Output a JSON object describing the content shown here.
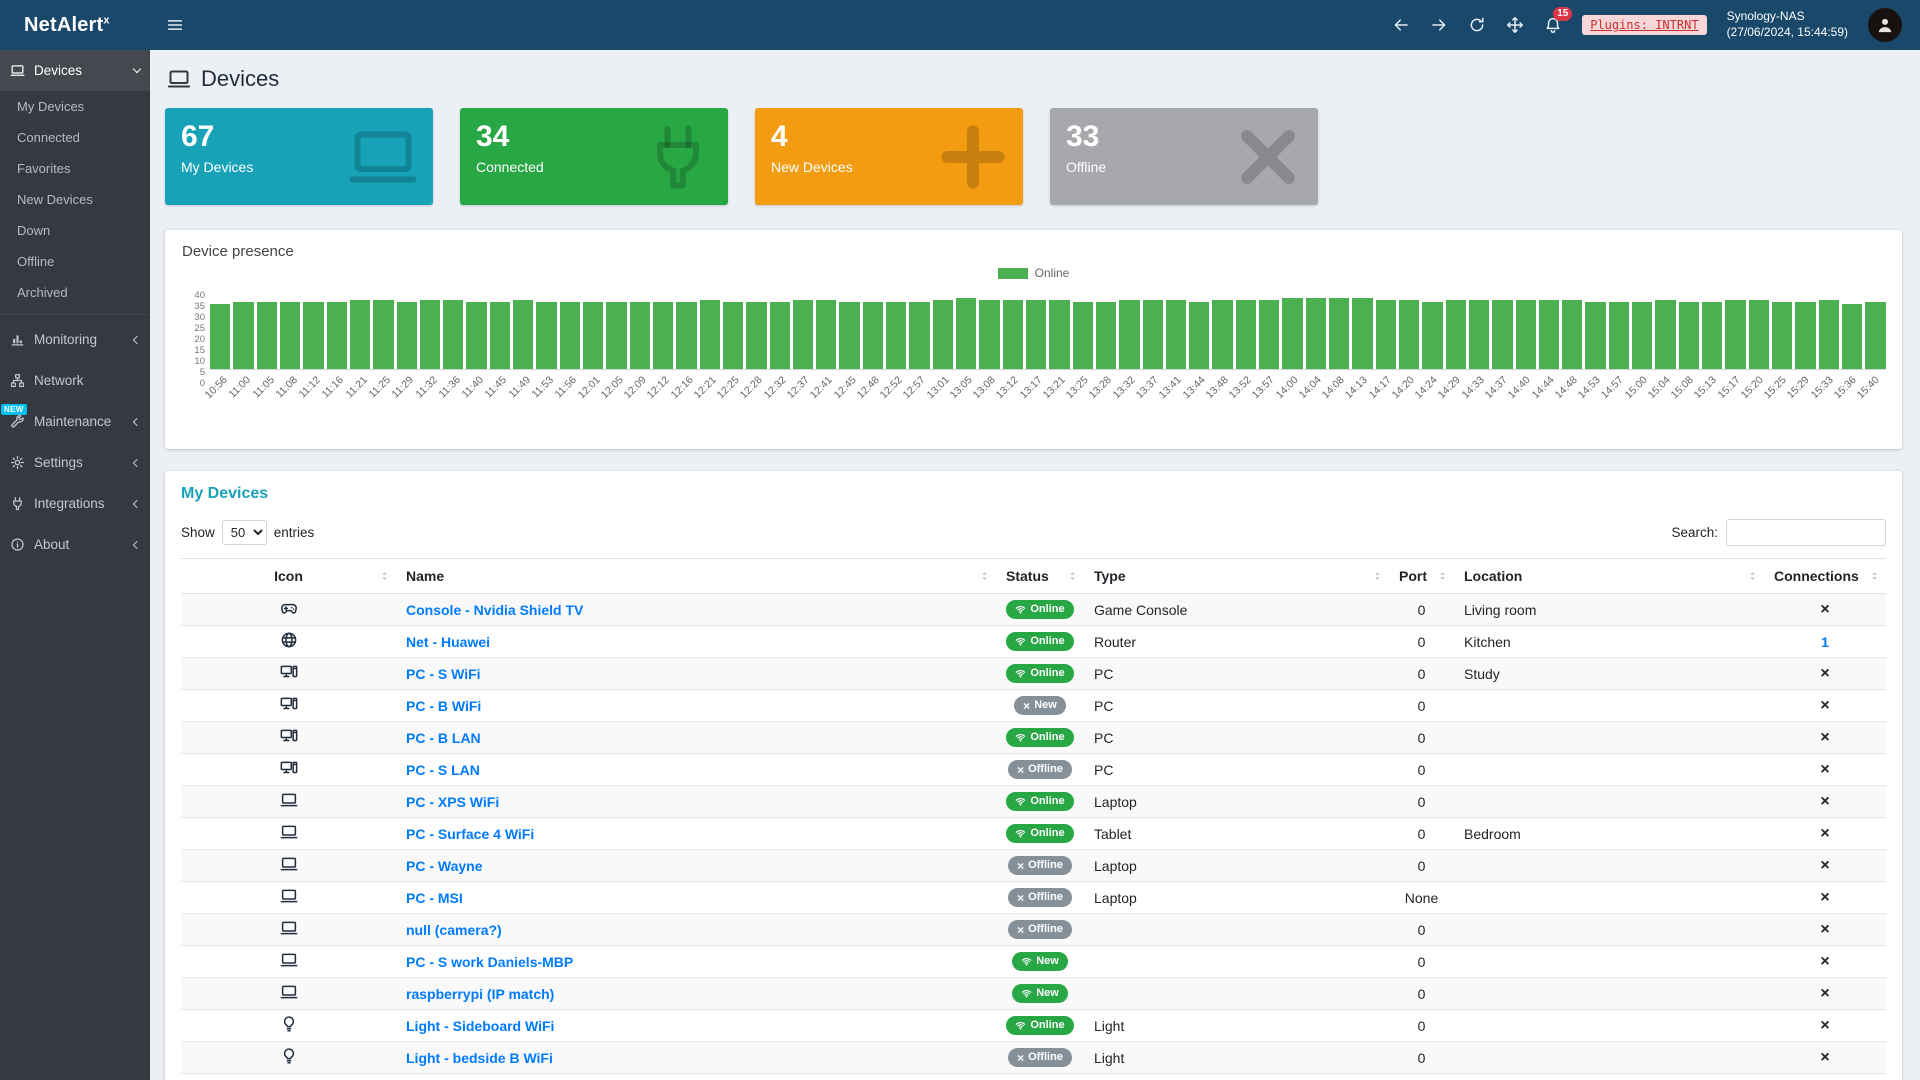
{
  "brand": {
    "name": "NetAlert",
    "sup": "x"
  },
  "topbar": {
    "notification_count": "15",
    "plugins_badge": "Plugins: INTRNT",
    "host": "Synology-NAS",
    "timestamp": "(27/06/2024, 15:44:59)"
  },
  "sidebar": {
    "items": [
      {
        "label": "Devices",
        "icon": "laptop-icon",
        "active": true,
        "expandable": true,
        "expanded": true,
        "children": [
          "My Devices",
          "Connected",
          "Favorites",
          "New Devices",
          "Down",
          "Offline",
          "Archived"
        ]
      },
      {
        "label": "Monitoring",
        "icon": "chart-icon",
        "expandable": true,
        "expanded": false
      },
      {
        "label": "Network",
        "icon": "network-icon",
        "expandable": false
      },
      {
        "label": "Maintenance",
        "icon": "wrench-icon",
        "expandable": true,
        "expanded": false,
        "new_badge": "NEW"
      },
      {
        "label": "Settings",
        "icon": "gear-icon",
        "expandable": true,
        "expanded": false
      },
      {
        "label": "Integrations",
        "icon": "plug-icon",
        "expandable": true,
        "expanded": false
      },
      {
        "label": "About",
        "icon": "info-icon",
        "expandable": true,
        "expanded": false
      }
    ]
  },
  "page": {
    "title": "Devices"
  },
  "colors": {
    "status_green": "#28a745",
    "status_gray": "#869099",
    "link_blue": "#007bff",
    "bar_online": "#4caf50"
  },
  "stat_cards": [
    {
      "value": "67",
      "label": "My Devices",
      "color": "#17a2b8",
      "icon": "laptop-icon"
    },
    {
      "value": "34",
      "label": "Connected",
      "color": "#28a745",
      "icon": "plug-icon"
    },
    {
      "value": "4",
      "label": "New Devices",
      "color": "#f39c12",
      "icon": "plus-icon"
    },
    {
      "value": "33",
      "label": "Offline",
      "color": "#a6a8ab",
      "icon": "x-icon"
    }
  ],
  "chart_data": {
    "type": "bar",
    "title": "Device presence",
    "legend": [
      {
        "label": "Online",
        "color": "#4caf50"
      }
    ],
    "ylim": [
      0,
      40
    ],
    "yticks": [
      40,
      35,
      30,
      25,
      20,
      15,
      10,
      5,
      0
    ],
    "categories": [
      "10:56",
      "11:00",
      "11:05",
      "11:08",
      "11:12",
      "11:16",
      "11:21",
      "11:25",
      "11:29",
      "11:32",
      "11:36",
      "11:40",
      "11:45",
      "11:49",
      "11:53",
      "11:56",
      "12:01",
      "12:05",
      "12:09",
      "12:12",
      "12:16",
      "12:21",
      "12:25",
      "12:28",
      "12:32",
      "12:37",
      "12:41",
      "12:45",
      "12:48",
      "12:52",
      "12:57",
      "13:01",
      "13:05",
      "13:08",
      "13:12",
      "13:17",
      "13:21",
      "13:25",
      "13:28",
      "13:32",
      "13:37",
      "13:41",
      "13:44",
      "13:48",
      "13:52",
      "13:57",
      "14:00",
      "14:04",
      "14:08",
      "14:13",
      "14:17",
      "14:20",
      "14:24",
      "14:29",
      "14:33",
      "14:37",
      "14:40",
      "14:44",
      "14:48",
      "14:53",
      "14:57",
      "15:00",
      "15:04",
      "15:08",
      "15:13",
      "15:17",
      "15:20",
      "15:25",
      "15:29",
      "15:33",
      "15:36",
      "15:40"
    ],
    "values": [
      33,
      34,
      34,
      34,
      34,
      34,
      35,
      35,
      34,
      35,
      35,
      34,
      34,
      35,
      34,
      34,
      34,
      34,
      34,
      34,
      34,
      35,
      34,
      34,
      34,
      35,
      35,
      34,
      34,
      34,
      34,
      35,
      36,
      35,
      35,
      35,
      35,
      34,
      34,
      35,
      35,
      35,
      34,
      35,
      35,
      35,
      36,
      36,
      36,
      36,
      35,
      35,
      34,
      35,
      35,
      35,
      35,
      35,
      35,
      34,
      34,
      34,
      35,
      34,
      34,
      35,
      35,
      34,
      34,
      35,
      33,
      34
    ]
  },
  "devices_table": {
    "title": "My Devices",
    "show_label": "Show",
    "entries_label": "entries",
    "page_size": "50",
    "search_label": "Search:",
    "columns": [
      "Icon",
      "Name",
      "Status",
      "Type",
      "Port",
      "Location",
      "Connections"
    ],
    "rows": [
      {
        "icon": "gamepad-icon",
        "name": "Console - Nvidia Shield TV",
        "status": "Online",
        "status_color": "green",
        "status_icon": "wifi",
        "type": "Game Console",
        "port": "0",
        "location": "Living room",
        "connections": "x"
      },
      {
        "icon": "globe-icon",
        "name": "Net - Huawei",
        "status": "Online",
        "status_color": "green",
        "status_icon": "wifi",
        "type": "Router",
        "port": "0",
        "location": "Kitchen",
        "connections": "1"
      },
      {
        "icon": "desktop-icon",
        "name": "PC - S WiFi",
        "status": "Online",
        "status_color": "green",
        "status_icon": "wifi",
        "type": "PC",
        "port": "0",
        "location": "Study",
        "connections": "x"
      },
      {
        "icon": "desktop-icon",
        "name": "PC - B WiFi",
        "status": "New",
        "status_color": "gray",
        "status_icon": "x",
        "type": "PC",
        "port": "0",
        "location": "",
        "connections": "x"
      },
      {
        "icon": "desktop-icon",
        "name": "PC - B LAN",
        "status": "Online",
        "status_color": "green",
        "status_icon": "wifi",
        "type": "PC",
        "port": "0",
        "location": "",
        "connections": "x"
      },
      {
        "icon": "desktop-icon",
        "name": "PC - S LAN",
        "status": "Offline",
        "status_color": "gray",
        "status_icon": "x",
        "type": "PC",
        "port": "0",
        "location": "",
        "connections": "x"
      },
      {
        "icon": "laptop-icon",
        "name": "PC - XPS WiFi",
        "status": "Online",
        "status_color": "green",
        "status_icon": "wifi",
        "type": "Laptop",
        "port": "0",
        "location": "",
        "connections": "x"
      },
      {
        "icon": "laptop-icon",
        "name": "PC - Surface 4 WiFi",
        "status": "Online",
        "status_color": "green",
        "status_icon": "wifi",
        "type": "Tablet",
        "port": "0",
        "location": "Bedroom",
        "connections": "x"
      },
      {
        "icon": "laptop-icon",
        "name": "PC - Wayne",
        "status": "Offline",
        "status_color": "gray",
        "status_icon": "x",
        "type": "Laptop",
        "port": "0",
        "location": "",
        "connections": "x"
      },
      {
        "icon": "laptop-icon",
        "name": "PC - MSI",
        "status": "Offline",
        "status_color": "gray",
        "status_icon": "x",
        "type": "Laptop",
        "port": "None",
        "location": "",
        "connections": "x"
      },
      {
        "icon": "laptop-icon",
        "name": "null (camera?)",
        "status": "Offline",
        "status_color": "gray",
        "status_icon": "x",
        "type": "",
        "port": "0",
        "location": "",
        "connections": "x"
      },
      {
        "icon": "laptop-icon",
        "name": "PC - S work Daniels-MBP",
        "status": "New",
        "status_color": "green",
        "status_icon": "wifi",
        "type": "",
        "port": "0",
        "location": "",
        "connections": "x"
      },
      {
        "icon": "laptop-icon",
        "name": "raspberrypi (IP match)",
        "status": "New",
        "status_color": "green",
        "status_icon": "wifi",
        "type": "",
        "port": "0",
        "location": "",
        "connections": "x"
      },
      {
        "icon": "lightbulb-icon",
        "name": "Light - Sideboard WiFi",
        "status": "Online",
        "status_color": "green",
        "status_icon": "wifi",
        "type": "Light",
        "port": "0",
        "location": "",
        "connections": "x"
      },
      {
        "icon": "lightbulb-icon",
        "name": "Light - bedside B WiFi",
        "status": "Offline",
        "status_color": "gray",
        "status_icon": "x",
        "type": "Light",
        "port": "0",
        "location": "",
        "connections": "x"
      }
    ]
  }
}
